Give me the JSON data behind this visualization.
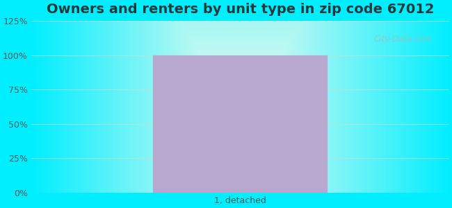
{
  "title": "Owners and renters by unit type in zip code 67012",
  "categories": [
    "1, detached"
  ],
  "values": [
    100
  ],
  "bar_color": "#b8a8d0",
  "bar_edge_color": "#b8a8d0",
  "ylim": [
    0,
    125
  ],
  "yticks": [
    0,
    25,
    50,
    75,
    100,
    125
  ],
  "ytick_labels": [
    "0%",
    "25%",
    "50%",
    "75%",
    "100%",
    "125%"
  ],
  "title_fontsize": 14,
  "title_fontweight": "bold",
  "tick_fontsize": 9,
  "xlabel_fontsize": 9,
  "bg_cyan": "#00eeff",
  "bg_center": "#edfbf0",
  "watermark_text": "City-Data.com",
  "bar_width": 0.5
}
